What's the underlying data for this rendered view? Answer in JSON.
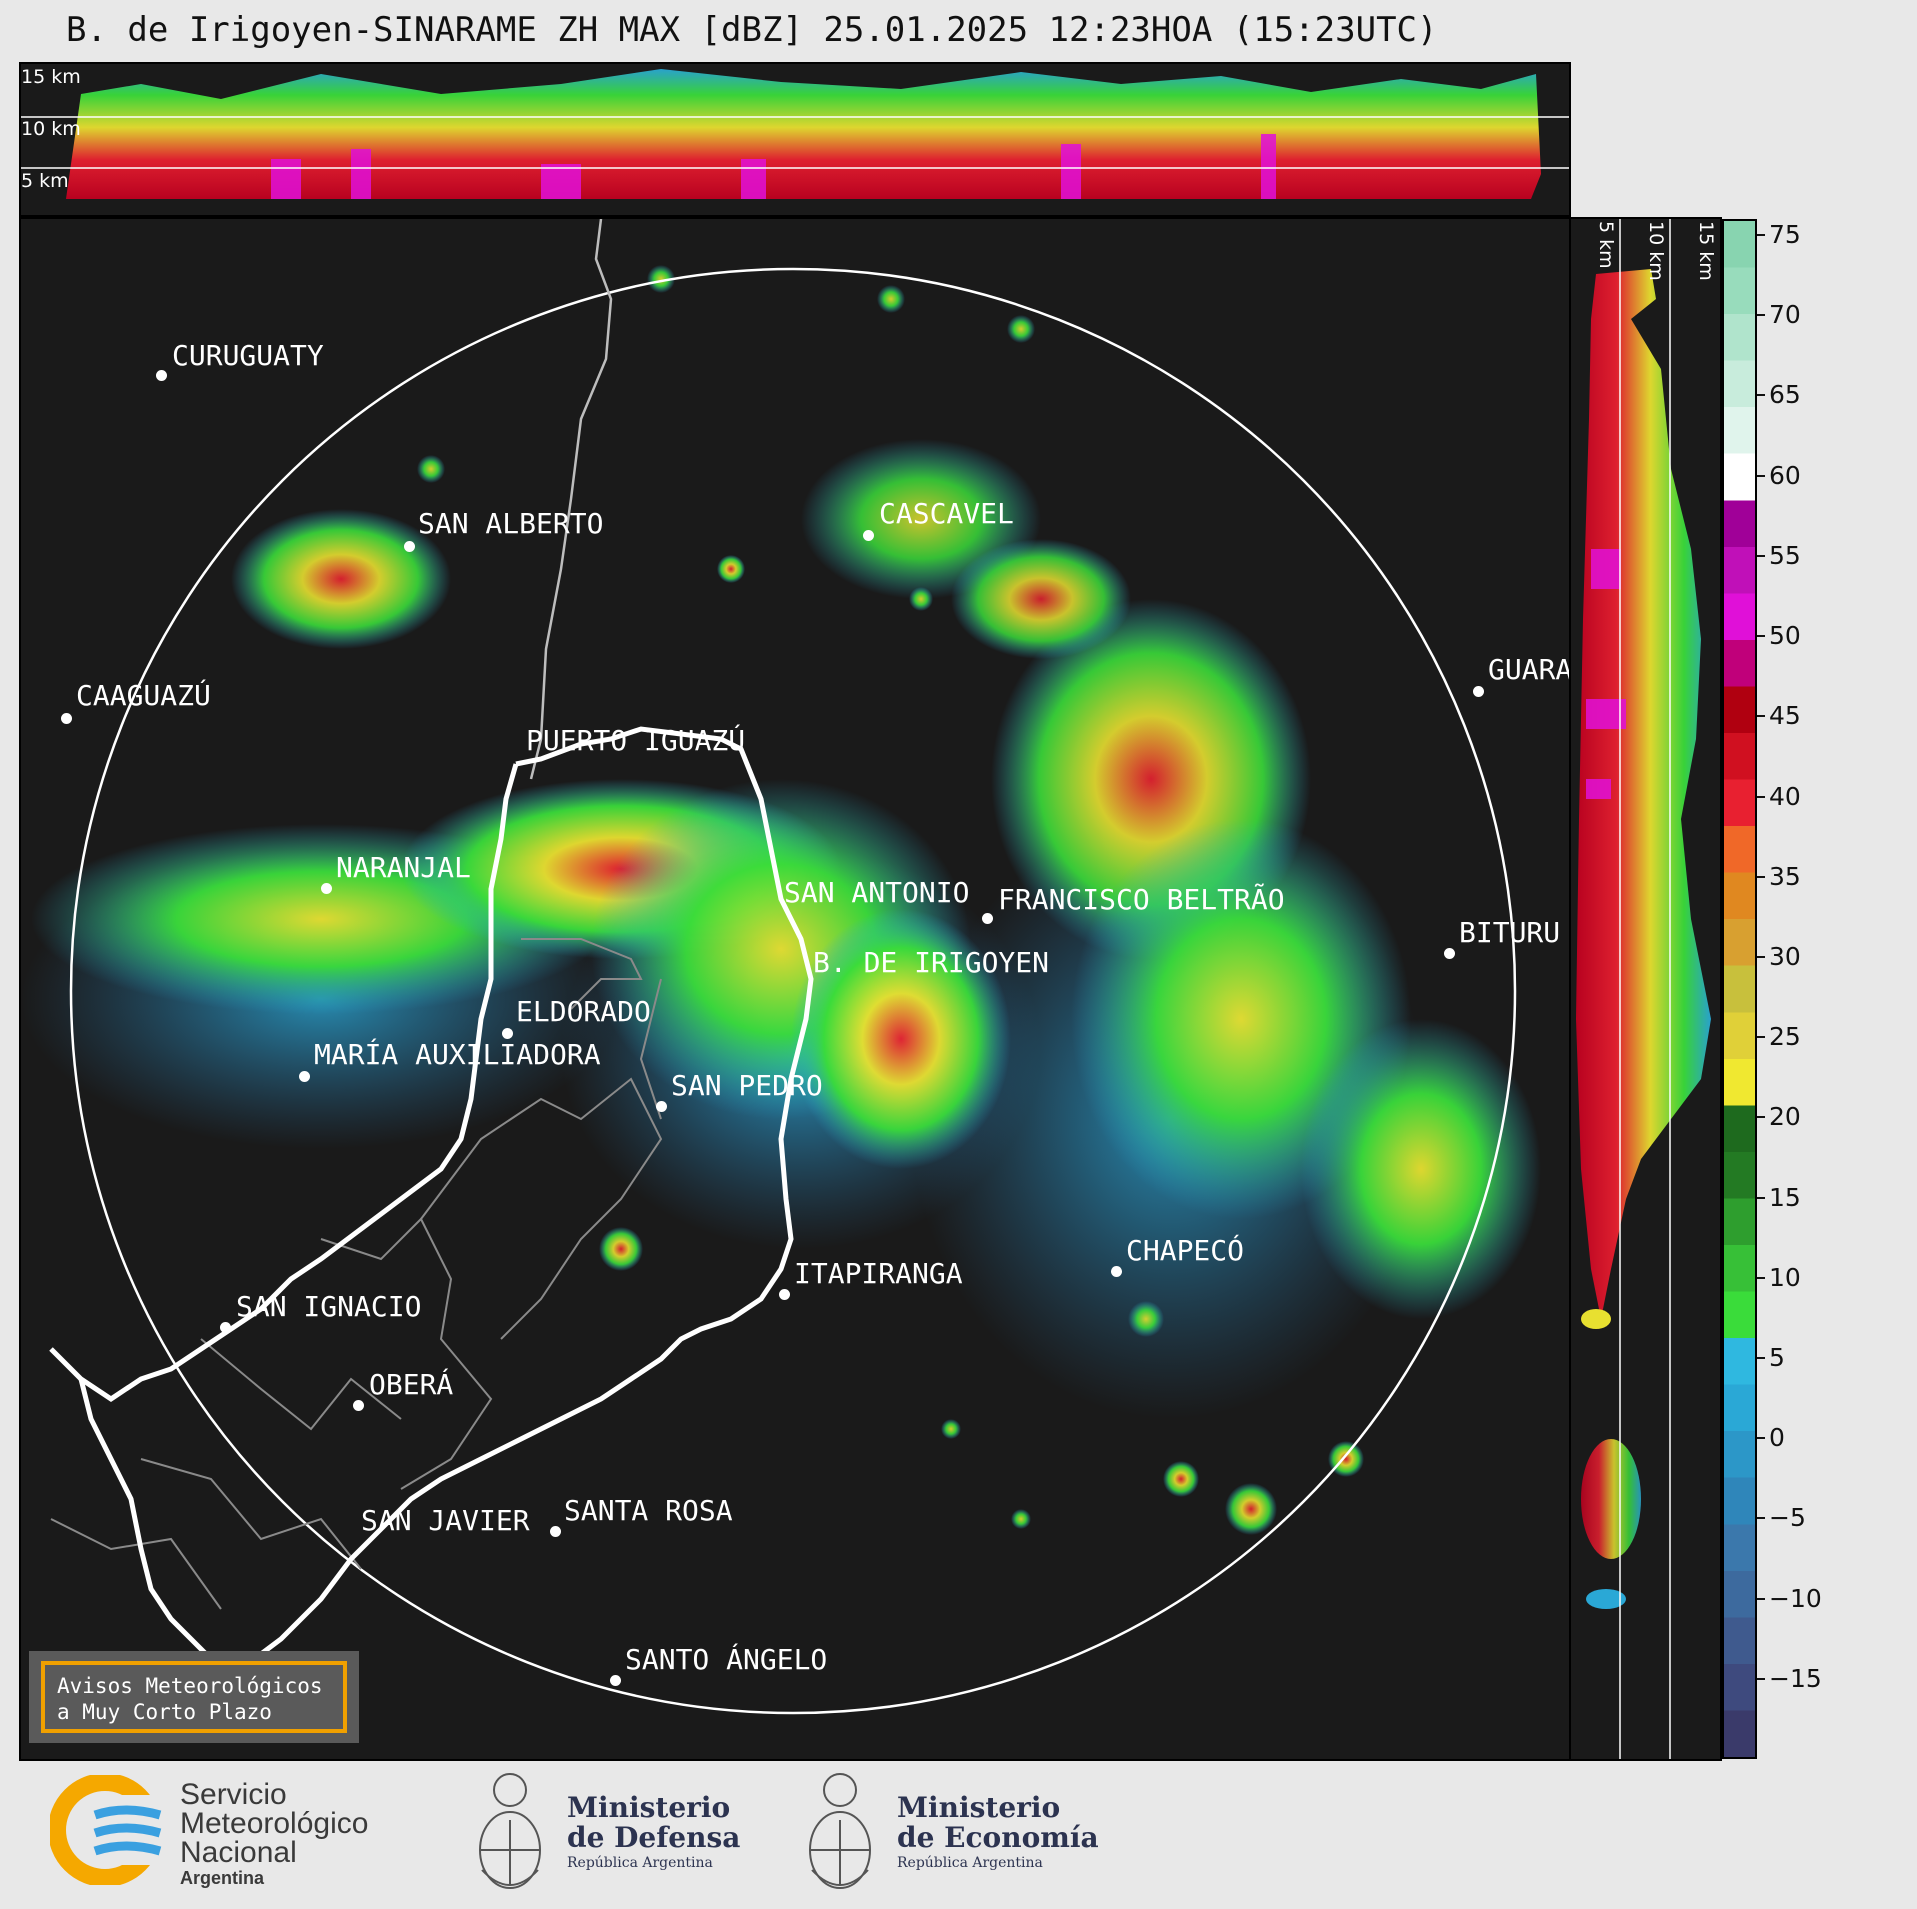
{
  "title": "B. de Irigoyen-SINARAME ZH MAX [dBZ] 25.01.2025 12:23HOA (15:23UTC)",
  "height_labels": [
    "15 km",
    "10 km",
    "5 km"
  ],
  "cities": [
    {
      "name": "CURUGUATY"
    },
    {
      "name": "SAN ALBERTO"
    },
    {
      "name": "CASCAVEL"
    },
    {
      "name": "CAAGUAZÚ"
    },
    {
      "name": "GUARA"
    },
    {
      "name": "PUERTO IGUAZÚ"
    },
    {
      "name": "NARANJAL"
    },
    {
      "name": "SAN ANTONIO"
    },
    {
      "name": "FRANCISCO BELTRÃO"
    },
    {
      "name": "BITURU"
    },
    {
      "name": "B. DE IRIGOYEN"
    },
    {
      "name": "ELDORADO"
    },
    {
      "name": "MARÍA AUXILIADORA"
    },
    {
      "name": "SAN PEDRO"
    },
    {
      "name": "CHAPECÓ"
    },
    {
      "name": "ITAPIRANGA"
    },
    {
      "name": "SAN IGNACIO"
    },
    {
      "name": "OBERÁ"
    },
    {
      "name": "SAN JAVIER"
    },
    {
      "name": "SANTA ROSA"
    },
    {
      "name": "SANTO ÁNGELO"
    }
  ],
  "colorbar": {
    "unit": "dBZ",
    "ticks": [
      "75",
      "70",
      "65",
      "60",
      "55",
      "50",
      "45",
      "40",
      "35",
      "30",
      "25",
      "20",
      "15",
      "10",
      "5",
      "0",
      "−5",
      "−10",
      "−15"
    ],
    "min": -20,
    "max": 76,
    "colors": [
      "#3a3a6a",
      "#3e4a7e",
      "#3f5a8e",
      "#3d6a9e",
      "#3b78ac",
      "#2f86ba",
      "#2c97c8",
      "#2aa8d6",
      "#2fb8e0",
      "#3adc3a",
      "#37c037",
      "#2e9e2e",
      "#237a23",
      "#1e6a1e",
      "#f0e830",
      "#e0d038",
      "#c8c03c",
      "#d8a030",
      "#e08820",
      "#f06828",
      "#e82030",
      "#d01020",
      "#b00010",
      "#c0007a",
      "#e010d8",
      "#c010b8",
      "#a00098",
      "#ffffff",
      "#e0f4ec",
      "#c8ecdc",
      "#b0e4cc",
      "#98dcbc",
      "#88d4b0"
    ]
  },
  "warning": {
    "line1": "Avisos Meteorológicos",
    "line2": "a Muy Corto Plazo"
  },
  "logos": {
    "smn_line1": "Servicio",
    "smn_line2": "Meteorológico",
    "smn_line3": "Nacional",
    "smn_line4": "Argentina",
    "defensa_line1": "Ministerio",
    "defensa_line2": "de Defensa",
    "defensa_line3": "República Argentina",
    "economia_line1": "Ministerio",
    "economia_line2": "de Economía",
    "economia_line3": "República Argentina"
  }
}
